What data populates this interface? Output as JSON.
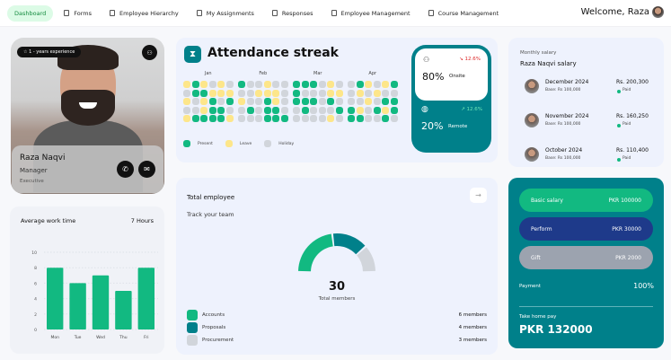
{
  "nav": {
    "items": [
      {
        "label": "Dashboard",
        "icon": "none",
        "active": true
      },
      {
        "label": "Forms",
        "icon": "clipboard-icon"
      },
      {
        "label": "Employee Hierarchy",
        "icon": "users-icon"
      },
      {
        "label": "My Assignments",
        "icon": "clipboard-check-icon"
      },
      {
        "label": "Responses",
        "icon": "clipboard-icon"
      },
      {
        "label": "Employee Management",
        "icon": "clipboard-icon"
      },
      {
        "label": "Course Management",
        "icon": "book-icon"
      }
    ],
    "welcome": "Welcome, Raza"
  },
  "profile": {
    "experience": "☆ 1 - years experience",
    "name": "Raza Naqvi",
    "role": "Manager",
    "level": "Executive"
  },
  "avg_work": {
    "title": "Average work time",
    "value": "7 Hours"
  },
  "chart_data": {
    "type": "bar",
    "categories": [
      "Mon",
      "Tue",
      "Wed",
      "Thu",
      "Fri"
    ],
    "values": [
      8,
      6,
      7,
      5,
      8
    ],
    "yticks": [
      0,
      2,
      4,
      6,
      8,
      10
    ],
    "ylim": [
      0,
      10
    ],
    "color": "#12b981",
    "title": "Average work time",
    "xlabel": "",
    "ylabel": ""
  },
  "attendance": {
    "title": "Attendance streak",
    "months": [
      {
        "label": "Jan",
        "rows": [
          "LPLHLH",
          "HPPLLL",
          "LHLPHP",
          "HHLPPH",
          "LPPPPL"
        ]
      },
      {
        "label": "Feb",
        "rows": [
          "PHHLHH",
          "HHLLLH",
          "LHHPLH",
          "HPHPPH",
          "HHHPPP"
        ]
      },
      {
        "label": "Mar",
        "rows": [
          "PPPHLH",
          "PHHHLL",
          "PPPHPH",
          "HPHHHP",
          "HHHHLH"
        ]
      },
      {
        "label": "Apr",
        "rows": [
          "HPLHLP",
          "HLHLHH",
          "HHLHPP",
          "PLHPLP",
          "PPHHPH"
        ]
      }
    ],
    "legend": [
      {
        "key": "P",
        "label": "Present",
        "color": "#12b981"
      },
      {
        "key": "L",
        "label": "Leave",
        "color": "#fde68a"
      },
      {
        "key": "H",
        "label": "Holiday",
        "color": "#d1d5db"
      }
    ],
    "onsite": {
      "percent": "80%",
      "label": "Onsite",
      "change": "↘ 12.6%"
    },
    "remote": {
      "percent": "20%",
      "label": "Remote",
      "change": "↗ 12.6%"
    }
  },
  "total": {
    "title": "Total employee",
    "subtitle": "Track your team",
    "count": "30",
    "count_label": "Total members",
    "groups": [
      {
        "label": "Accounts",
        "members": "6 members",
        "value": 6,
        "color": "#12b981"
      },
      {
        "label": "Proposals",
        "members": "4 members",
        "value": 4,
        "color": "#00808a"
      },
      {
        "label": "Procurement",
        "members": "3 members",
        "value": 3,
        "color": "#d1d5db"
      }
    ]
  },
  "salary": {
    "caption": "Monthly salary",
    "title": "Raza Naqvi salary",
    "rows": [
      {
        "month": "December 2024",
        "base": "Base: Rs 100,000",
        "amount": "Rs. 200,300",
        "status": "Paid"
      },
      {
        "month": "November 2024",
        "base": "Base: Rs 100,000",
        "amount": "Rs. 160,250",
        "status": "Paid"
      },
      {
        "month": "October 2024",
        "base": "Base: Rs 100,000",
        "amount": "Rs. 110,400",
        "status": "Paid"
      }
    ]
  },
  "pay": {
    "items": [
      {
        "label": "Basic salary",
        "value": "PKR 100000",
        "color": "#12b981"
      },
      {
        "label": "Perform",
        "value": "PKR 30000",
        "color": "#1e3a8a"
      },
      {
        "label": "Gift",
        "value": "PKR 2000",
        "color": "#9ca3af"
      }
    ],
    "payment_label": "Payment",
    "payment_value": "100%",
    "take_home_label": "Take home pay",
    "take_home": "PKR 132000"
  }
}
